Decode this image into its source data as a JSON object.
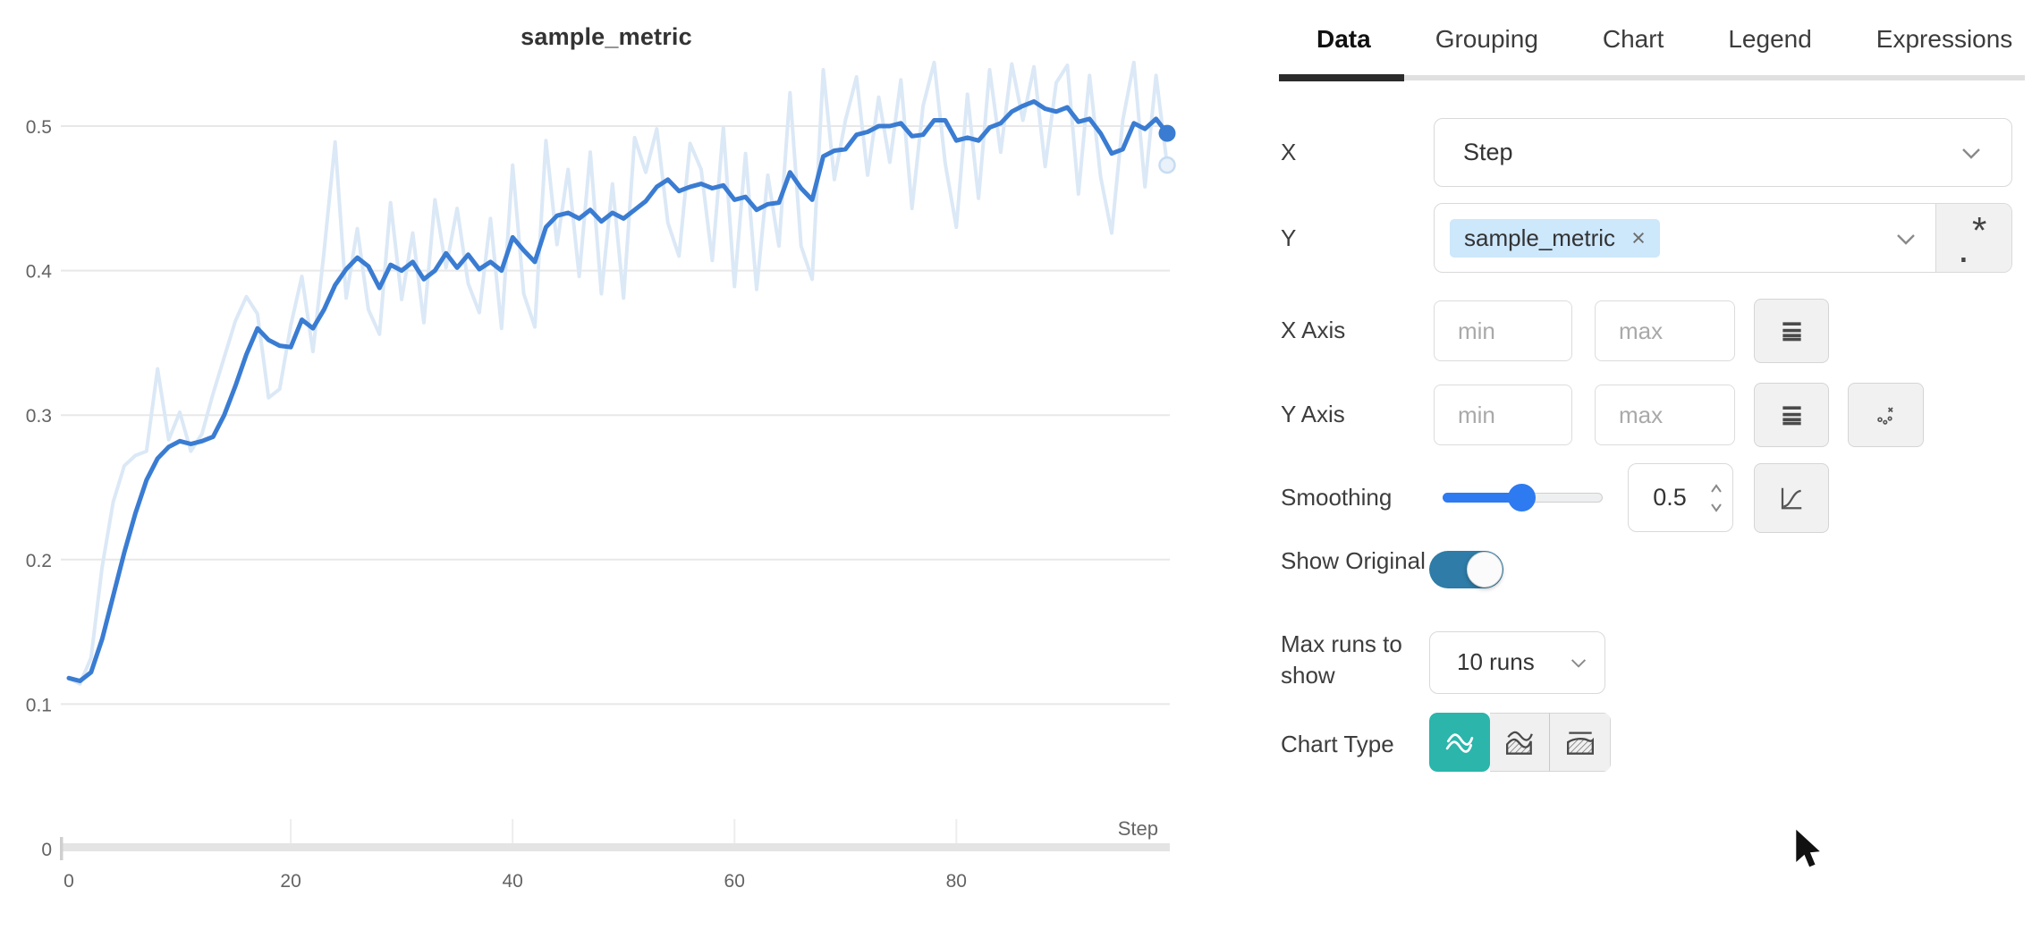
{
  "chart_data": {
    "type": "line",
    "title": "sample_metric",
    "xlabel": "Step",
    "x_start": 0,
    "x_step": 1,
    "x_ticks": [
      "0",
      "20",
      "40",
      "60",
      "80"
    ],
    "y_ticks": [
      "0",
      "0.1",
      "0.2",
      "0.3",
      "0.4",
      "0.5"
    ],
    "xlim": [
      0,
      102
    ],
    "ylim": [
      0,
      0.56
    ],
    "grid": true,
    "legend_position": "none",
    "series": [
      {
        "name": "sample_metric (original)",
        "color": "#dbe8f6",
        "end_dot": {
          "fill": "#e9f1fa",
          "stroke": "#c6dcf2"
        },
        "values": [
          0.118,
          0.114,
          0.132,
          0.195,
          0.24,
          0.265,
          0.272,
          0.275,
          0.332,
          0.283,
          0.302,
          0.275,
          0.287,
          0.315,
          0.34,
          0.365,
          0.382,
          0.37,
          0.312,
          0.318,
          0.362,
          0.396,
          0.344,
          0.413,
          0.489,
          0.381,
          0.429,
          0.373,
          0.356,
          0.447,
          0.38,
          0.426,
          0.364,
          0.449,
          0.402,
          0.443,
          0.391,
          0.371,
          0.436,
          0.36,
          0.473,
          0.384,
          0.361,
          0.49,
          0.418,
          0.47,
          0.396,
          0.482,
          0.384,
          0.46,
          0.381,
          0.492,
          0.468,
          0.498,
          0.433,
          0.41,
          0.488,
          0.47,
          0.407,
          0.499,
          0.389,
          0.481,
          0.387,
          0.466,
          0.417,
          0.523,
          0.417,
          0.394,
          0.539,
          0.463,
          0.504,
          0.534,
          0.466,
          0.52,
          0.475,
          0.532,
          0.443,
          0.514,
          0.544,
          0.474,
          0.43,
          0.522,
          0.45,
          0.539,
          0.482,
          0.543,
          0.504,
          0.541,
          0.472,
          0.53,
          0.542,
          0.453,
          0.535,
          0.465,
          0.426,
          0.504,
          0.544,
          0.458,
          0.535,
          0.473
        ]
      },
      {
        "name": "sample_metric (smoothed)",
        "color": "#3a7cd2",
        "end_dot": {
          "fill": "#3a7cd2",
          "stroke": "none"
        },
        "values": [
          0.118,
          0.116,
          0.122,
          0.145,
          0.175,
          0.205,
          0.232,
          0.255,
          0.27,
          0.278,
          0.282,
          0.28,
          0.282,
          0.285,
          0.3,
          0.32,
          0.342,
          0.36,
          0.352,
          0.348,
          0.347,
          0.366,
          0.36,
          0.373,
          0.39,
          0.401,
          0.409,
          0.403,
          0.388,
          0.404,
          0.4,
          0.406,
          0.394,
          0.4,
          0.412,
          0.402,
          0.411,
          0.401,
          0.406,
          0.4,
          0.423,
          0.414,
          0.406,
          0.43,
          0.438,
          0.44,
          0.436,
          0.442,
          0.434,
          0.44,
          0.436,
          0.442,
          0.448,
          0.458,
          0.463,
          0.455,
          0.458,
          0.46,
          0.457,
          0.459,
          0.449,
          0.451,
          0.442,
          0.446,
          0.447,
          0.468,
          0.457,
          0.449,
          0.479,
          0.483,
          0.484,
          0.494,
          0.496,
          0.5,
          0.5,
          0.502,
          0.493,
          0.494,
          0.504,
          0.504,
          0.49,
          0.492,
          0.49,
          0.499,
          0.502,
          0.51,
          0.514,
          0.517,
          0.512,
          0.51,
          0.513,
          0.503,
          0.505,
          0.495,
          0.481,
          0.484,
          0.502,
          0.498,
          0.505,
          0.495
        ]
      }
    ]
  },
  "panel": {
    "tabs": [
      {
        "label": "Data",
        "active": true
      },
      {
        "label": "Grouping",
        "active": false
      },
      {
        "label": "Chart",
        "active": false
      },
      {
        "label": "Legend",
        "active": false
      },
      {
        "label": "Expressions",
        "active": false
      }
    ],
    "x_row": {
      "label": "X",
      "value": "Step"
    },
    "y_row": {
      "label": "Y",
      "tag": "sample_metric",
      "remove_label": "×",
      "regex_dot": ".",
      "regex_star": "*"
    },
    "x_axis_row": {
      "label": "X Axis",
      "min_placeholder": "min",
      "max_placeholder": "max"
    },
    "y_axis_row": {
      "label": "Y Axis",
      "min_placeholder": "min",
      "max_placeholder": "max"
    },
    "smoothing_row": {
      "label": "Smoothing",
      "value": "0.5",
      "slider_percent": 52
    },
    "show_original_row": {
      "label": "Show Original",
      "enabled": true
    },
    "max_runs_row": {
      "label": "Max runs to show",
      "value": "10 runs"
    },
    "chart_type_row": {
      "label": "Chart Type",
      "selected_index": 0
    },
    "icons": [
      "chevron-down-icon",
      "remove-tag-icon",
      "regex-icon",
      "log-scale-icon",
      "ignore-outliers-icon",
      "number-spinner-icon",
      "smoothing-type-icon",
      "line-plot-icon",
      "area-plot-icon",
      "percentile-plot-icon"
    ]
  },
  "colors": {
    "accent_teal": "#2bb5ab",
    "toggle_blue": "#2e7ca7",
    "slider_blue": "#2e7af0",
    "smoothed_line": "#3a7cd2",
    "original_line": "#dbe8f6",
    "tag_background": "#cde7fb",
    "grid_line": "#e8e8e8",
    "axis_bar": "#e4e4e4",
    "tick_text": "#636363"
  }
}
